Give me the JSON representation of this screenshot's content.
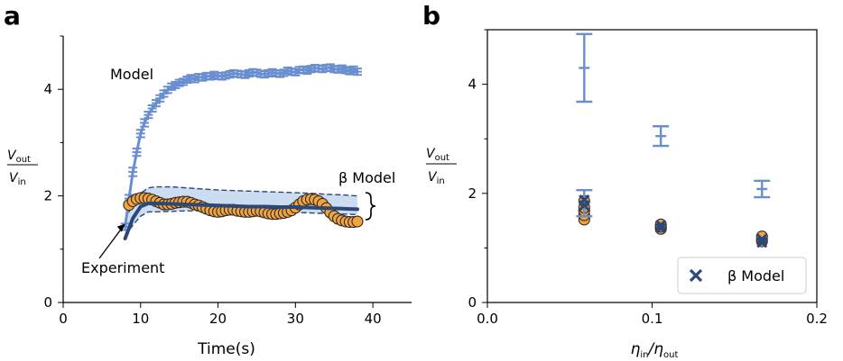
{
  "colors": {
    "model": "#6a8fd0",
    "beta_model": "#2c4778",
    "experiment_fill": "#f3a33c",
    "experiment_edge": "#2a2a2a",
    "band": "#c6d9ef"
  },
  "chart_data": [
    {
      "panel": "a",
      "type": "line",
      "xlabel": "Time(s)",
      "ylabel": "V_out/V_in",
      "xlim": [
        0,
        45
      ],
      "ylim": [
        0,
        5
      ],
      "xticks": [
        0,
        10,
        20,
        30,
        40
      ],
      "yticks": [
        0,
        2,
        4
      ],
      "annotations": {
        "model": "Model",
        "beta_model": "β Model",
        "experiment": "Experiment"
      },
      "series": [
        {
          "name": "Model",
          "t": [
            8,
            8.5,
            9,
            9.5,
            10,
            10.5,
            11,
            11.5,
            12,
            12.5,
            13,
            13.5,
            14,
            14.5,
            15,
            15.5,
            16,
            16.5,
            17,
            17.5,
            18,
            18.5,
            19,
            19.5,
            20,
            20.5,
            21,
            21.5,
            22,
            22.5,
            23,
            23.5,
            24,
            24.5,
            25,
            25.5,
            26,
            26.5,
            27,
            27.5,
            28,
            28.5,
            29,
            29.5,
            30,
            30.5,
            31,
            31.5,
            32,
            32.5,
            33,
            33.5,
            34,
            34.5,
            35,
            35.5,
            36,
            36.5,
            37,
            37.5,
            38
          ],
          "values": [
            1.42,
            1.95,
            2.45,
            2.82,
            3.17,
            3.37,
            3.52,
            3.64,
            3.74,
            3.83,
            3.92,
            3.99,
            4.05,
            4.08,
            4.12,
            4.14,
            4.18,
            4.21,
            4.19,
            4.23,
            4.22,
            4.25,
            4.24,
            4.27,
            4.25,
            4.24,
            4.26,
            4.28,
            4.3,
            4.29,
            4.28,
            4.27,
            4.3,
            4.32,
            4.31,
            4.29,
            4.28,
            4.3,
            4.32,
            4.3,
            4.29,
            4.31,
            4.35,
            4.33,
            4.32,
            4.36,
            4.37,
            4.35,
            4.38,
            4.4,
            4.39,
            4.38,
            4.4,
            4.41,
            4.38,
            4.37,
            4.39,
            4.36,
            4.34,
            4.37,
            4.33
          ],
          "errors": [
            0.06,
            0.07,
            0.08,
            0.07,
            0.07,
            0.07,
            0.06,
            0.06,
            0.06,
            0.06,
            0.06,
            0.06,
            0.06,
            0.06,
            0.06,
            0.06,
            0.06,
            0.06,
            0.06,
            0.06,
            0.06,
            0.06,
            0.06,
            0.06,
            0.06,
            0.06,
            0.06,
            0.06,
            0.06,
            0.06,
            0.06,
            0.06,
            0.06,
            0.06,
            0.06,
            0.06,
            0.06,
            0.06,
            0.06,
            0.06,
            0.06,
            0.06,
            0.06,
            0.06,
            0.06,
            0.06,
            0.06,
            0.06,
            0.06,
            0.06,
            0.06,
            0.06,
            0.06,
            0.06,
            0.06,
            0.06,
            0.06,
            0.06,
            0.06,
            0.06,
            0.06
          ]
        },
        {
          "name": "β Model",
          "t": [
            8,
            9,
            10,
            11,
            12,
            14,
            16,
            18,
            20,
            22,
            24,
            26,
            28,
            30,
            32,
            34,
            36,
            38
          ],
          "values": [
            1.2,
            1.58,
            1.8,
            1.86,
            1.86,
            1.85,
            1.84,
            1.83,
            1.82,
            1.81,
            1.8,
            1.8,
            1.79,
            1.79,
            1.78,
            1.77,
            1.76,
            1.75
          ],
          "upper": [
            1.55,
            1.85,
            2.05,
            2.15,
            2.17,
            2.17,
            2.15,
            2.13,
            2.11,
            2.1,
            2.09,
            2.08,
            2.07,
            2.06,
            2.05,
            2.03,
            2.02,
            2.0
          ],
          "lower": [
            1.25,
            1.45,
            1.62,
            1.7,
            1.7,
            1.71,
            1.72,
            1.72,
            1.71,
            1.71,
            1.71,
            1.7,
            1.7,
            1.69,
            1.68,
            1.67,
            1.66,
            1.65
          ]
        },
        {
          "name": "Experiment",
          "t": [
            8.5,
            9,
            9.5,
            10,
            10.5,
            11,
            11.5,
            12,
            12.5,
            13,
            13.5,
            14,
            14.5,
            15,
            15.5,
            16,
            16.5,
            17,
            17.5,
            18,
            18.5,
            19,
            19.5,
            20,
            20.5,
            21,
            21.5,
            22,
            22.5,
            23,
            23.5,
            24,
            24.5,
            25,
            25.5,
            26,
            26.5,
            27,
            27.5,
            28,
            28.5,
            29,
            29.5,
            30,
            30.5,
            31,
            31.5,
            32,
            32.5,
            33,
            33.5,
            34,
            34.5,
            35,
            35.5,
            36,
            36.5,
            37,
            37.5,
            38
          ],
          "values": [
            1.83,
            1.9,
            1.94,
            1.96,
            1.96,
            1.95,
            1.93,
            1.9,
            1.87,
            1.84,
            1.84,
            1.85,
            1.87,
            1.88,
            1.89,
            1.89,
            1.87,
            1.84,
            1.82,
            1.79,
            1.76,
            1.73,
            1.71,
            1.7,
            1.71,
            1.73,
            1.74,
            1.74,
            1.72,
            1.71,
            1.7,
            1.7,
            1.71,
            1.72,
            1.71,
            1.69,
            1.67,
            1.66,
            1.66,
            1.67,
            1.68,
            1.7,
            1.73,
            1.78,
            1.84,
            1.9,
            1.93,
            1.94,
            1.93,
            1.9,
            1.85,
            1.77,
            1.69,
            1.62,
            1.57,
            1.54,
            1.52,
            1.51,
            1.51,
            1.52
          ]
        }
      ]
    },
    {
      "panel": "b",
      "type": "scatter",
      "xlabel": "η_in/η_out",
      "ylabel": "V_out/V_in",
      "xlim": [
        0.0,
        0.2
      ],
      "ylim": [
        0,
        5
      ],
      "xticks": [
        0.0,
        0.1,
        0.2
      ],
      "xtick_labels": [
        "0.0",
        "0.1",
        "0.2"
      ],
      "yticks": [
        0,
        2,
        4
      ],
      "legend": {
        "position": "lower-right",
        "label": "β Model"
      },
      "series": [
        {
          "name": "Model",
          "x": [
            0.0588,
            0.1053,
            0.1667
          ],
          "values": [
            4.3,
            3.05,
            2.08
          ],
          "errors": [
            0.62,
            0.18,
            0.15
          ]
        },
        {
          "name": "Model (lower)",
          "x": [
            0.0588
          ],
          "values": [
            1.82
          ],
          "errors": [
            0.24
          ]
        },
        {
          "name": "Experiment",
          "x": [
            0.0588,
            0.0588,
            0.0588,
            0.0588,
            0.0588,
            0.1053,
            0.1053,
            0.1053,
            0.1667,
            0.1667,
            0.1667
          ],
          "values": [
            1.52,
            1.6,
            1.68,
            1.74,
            1.86,
            1.35,
            1.39,
            1.43,
            1.12,
            1.16,
            1.21
          ]
        },
        {
          "name": "β Model",
          "x": [
            0.0588,
            0.0588,
            0.1053,
            0.1053,
            0.1667,
            0.1667
          ],
          "values": [
            1.78,
            1.88,
            1.36,
            1.42,
            1.1,
            1.16
          ]
        }
      ]
    }
  ]
}
